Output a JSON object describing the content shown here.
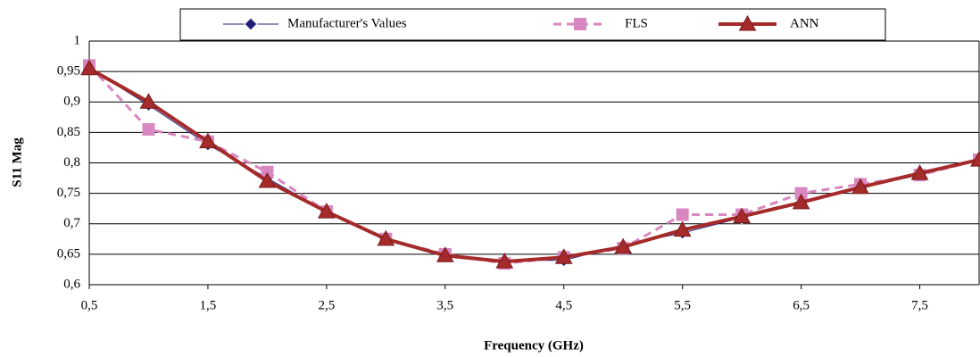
{
  "chart_data": {
    "type": "line",
    "x": [
      0.5,
      1,
      1.5,
      2,
      2.5,
      3,
      3.5,
      4,
      4.5,
      5,
      5.5,
      6,
      6.5,
      7,
      7.5,
      8
    ],
    "series": [
      {
        "name": "Manufacturer's Values",
        "color": "#1f1f7a",
        "marker": "diamond",
        "dash": false,
        "values": [
          0.955,
          0.895,
          0.83,
          0.775,
          0.72,
          0.675,
          0.65,
          0.64,
          0.64,
          0.665,
          0.685,
          0.71,
          0.735,
          0.76,
          0.78,
          0.805
        ]
      },
      {
        "name": "FLS",
        "color": "#d987c0",
        "marker": "square",
        "dash": true,
        "values": [
          0.96,
          0.855,
          0.835,
          0.785,
          0.72,
          0.675,
          0.65,
          0.635,
          0.645,
          0.66,
          0.715,
          0.715,
          0.75,
          0.765,
          0.78,
          0.805
        ]
      },
      {
        "name": "ANN",
        "color": "#a52a2a",
        "marker": "triangle",
        "dash": false,
        "values": [
          0.955,
          0.9,
          0.835,
          0.77,
          0.72,
          0.675,
          0.648,
          0.638,
          0.645,
          0.662,
          0.69,
          0.712,
          0.735,
          0.76,
          0.783,
          0.805
        ]
      }
    ],
    "xlabel": "Frequency (GHz)",
    "ylabel": "S11 Mag",
    "xlim": [
      0.5,
      8
    ],
    "xticks": [
      {
        "value": 0.5,
        "label": "0,5"
      },
      {
        "value": 1.5,
        "label": "1,5"
      },
      {
        "value": 2.5,
        "label": "2,5"
      },
      {
        "value": 3.5,
        "label": "3,5"
      },
      {
        "value": 4.5,
        "label": "4,5"
      },
      {
        "value": 5.5,
        "label": "5,5"
      },
      {
        "value": 6.5,
        "label": "6,5"
      },
      {
        "value": 7.5,
        "label": "7,5"
      }
    ],
    "ylim": [
      0.6,
      1
    ],
    "yticks": [
      {
        "value": 0.6,
        "label": "0,6"
      },
      {
        "value": 0.65,
        "label": "0,65"
      },
      {
        "value": 0.7,
        "label": "0,7"
      },
      {
        "value": 0.75,
        "label": "0,75"
      },
      {
        "value": 0.8,
        "label": "0,8"
      },
      {
        "value": 0.85,
        "label": "0,85"
      },
      {
        "value": 0.9,
        "label": "0,9"
      },
      {
        "value": 0.95,
        "label": "0,95"
      },
      1
    ],
    "grid": true,
    "legend": "top"
  }
}
